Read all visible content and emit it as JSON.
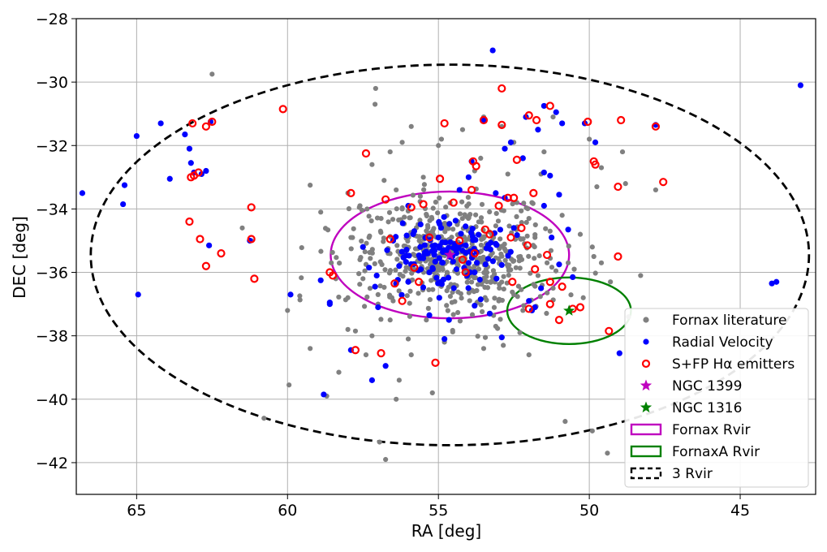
{
  "chart_data": {
    "type": "scatter",
    "xlabel": "RA [deg]",
    "ylabel": "DEC [deg]",
    "xlim": [
      67,
      42.5
    ],
    "ylim": [
      -43,
      -28
    ],
    "x_ticks": [
      65,
      60,
      55,
      50,
      45
    ],
    "y_ticks": [
      -28,
      -30,
      -32,
      -34,
      -36,
      -38,
      -40,
      -42
    ],
    "x_tick_labels": [
      "65",
      "60",
      "55",
      "50",
      "45"
    ],
    "y_tick_labels": [
      "−28",
      "−30",
      "−32",
      "−34",
      "−36",
      "−38",
      "−40",
      "−42"
    ],
    "grid": true,
    "legend_position": "lower-right",
    "colors": {
      "literature": "#808080",
      "velocity": "#0000ff",
      "halpha": "#ff0000",
      "ngc1399": "#bf00bf",
      "ngc1316": "#008000",
      "circle_3rvir": "#000000"
    },
    "legend": [
      {
        "label": "Fornax literature",
        "kind": "dot",
        "color": "#808080"
      },
      {
        "label": "Radial Velocity",
        "kind": "dot",
        "color": "#0000ff"
      },
      {
        "label": "S+FP Hα emitters",
        "kind": "ring",
        "color": "#ff0000"
      },
      {
        "label": "NGC 1399",
        "kind": "star",
        "color": "#bf00bf"
      },
      {
        "label": "NGC 1316",
        "kind": "star",
        "color": "#008000"
      },
      {
        "label": "Fornax Rvir",
        "kind": "rect",
        "color": "#bf00bf",
        "dashed": false
      },
      {
        "label": "FornaxA Rvir",
        "kind": "rect",
        "color": "#008000",
        "dashed": false
      },
      {
        "label": "3 Rvir",
        "kind": "rect",
        "color": "#000000",
        "dashed": true
      }
    ],
    "circles": [
      {
        "name": "Fornax Rvir",
        "center": [
          54.62,
          -35.45
        ],
        "radius_ra": 3.95,
        "radius_dec": 2.0,
        "color": "#bf00bf",
        "dashed": false
      },
      {
        "name": "FornaxA Rvir",
        "center": [
          50.67,
          -37.21
        ],
        "radius_ra": 2.05,
        "radius_dec": 1.05,
        "color": "#008000",
        "dashed": false
      },
      {
        "name": "3 Rvir",
        "center": [
          54.62,
          -35.45
        ],
        "radius_ra": 11.9,
        "radius_dec": 6.0,
        "color": "#000000",
        "dashed": true
      }
    ],
    "stars": [
      {
        "name": "NGC 1399",
        "ra": 54.62,
        "dec": -35.45,
        "color": "#bf00bf"
      },
      {
        "name": "NGC 1316",
        "ra": 50.67,
        "dec": -37.21,
        "color": "#008000"
      }
    ],
    "series": [
      {
        "name": "Fornax literature",
        "color": "#808080",
        "cluster": {
          "center": [
            54.6,
            -35.5
          ],
          "spread_ra": 1.6,
          "spread_dec": 0.9,
          "count": 520,
          "seed": 7
        },
        "points": [
          [
            62.5,
            -29.75
          ],
          [
            60.78,
            -40.6
          ],
          [
            57.08,
            -30.2
          ],
          [
            56.95,
            -41.35
          ],
          [
            56.75,
            -41.9
          ],
          [
            56.4,
            -40.0
          ],
          [
            59.95,
            -39.55
          ],
          [
            59.25,
            -38.4
          ],
          [
            58.7,
            -39.9
          ],
          [
            58.3,
            -39.15
          ],
          [
            58.0,
            -37.8
          ],
          [
            57.75,
            -37.85
          ],
          [
            57.4,
            -38.6
          ],
          [
            59.25,
            -33.25
          ],
          [
            58.9,
            -34.1
          ],
          [
            60.0,
            -37.2
          ],
          [
            61.5,
            -34.6
          ],
          [
            61.2,
            -35.0
          ],
          [
            58.55,
            -35.7
          ],
          [
            57.0,
            -36.7
          ],
          [
            57.2,
            -38.0
          ],
          [
            56.3,
            -39.4
          ],
          [
            55.2,
            -39.8
          ],
          [
            54.8,
            -38.2
          ],
          [
            53.5,
            -38.4
          ],
          [
            52.85,
            -38.3
          ],
          [
            52.0,
            -38.6
          ],
          [
            50.8,
            -40.7
          ],
          [
            49.9,
            -41.0
          ],
          [
            49.4,
            -41.7
          ],
          [
            49.6,
            -35.7
          ],
          [
            48.9,
            -32.2
          ],
          [
            48.8,
            -33.2
          ],
          [
            49.75,
            -33.3
          ],
          [
            50.7,
            -35.7
          ],
          [
            51.3,
            -34.7
          ],
          [
            50.5,
            -35.9
          ],
          [
            49.85,
            -35.5
          ],
          [
            51.9,
            -33.8
          ],
          [
            52.7,
            -32.9
          ],
          [
            53.5,
            -31.1
          ],
          [
            52.5,
            -31.9
          ],
          [
            51.6,
            -32.9
          ],
          [
            50.9,
            -34.2
          ],
          [
            50.3,
            -34.8
          ],
          [
            49.9,
            -35.2
          ],
          [
            53.8,
            -32.8
          ],
          [
            55.0,
            -32.0
          ],
          [
            55.5,
            -33.0
          ],
          [
            56.6,
            -32.2
          ],
          [
            56.8,
            -33.1
          ],
          [
            57.2,
            -32.6
          ],
          [
            58.0,
            -33.5
          ],
          [
            57.6,
            -33.9
          ],
          [
            56.2,
            -31.9
          ],
          [
            54.2,
            -31.5
          ],
          [
            52.9,
            -31.4
          ],
          [
            51.5,
            -32.2
          ],
          [
            50.0,
            -31.8
          ],
          [
            51.2,
            -31.1
          ],
          [
            49.6,
            -32.7
          ],
          [
            47.8,
            -33.4
          ],
          [
            48.3,
            -36.1
          ],
          [
            48.7,
            -37.4
          ],
          [
            49.3,
            -36.3
          ],
          [
            58.0,
            -36.8
          ],
          [
            57.6,
            -35.6
          ],
          [
            57.9,
            -34.9
          ],
          [
            56.9,
            -34.3
          ],
          [
            55.9,
            -31.4
          ],
          [
            54.9,
            -31.8
          ],
          [
            53.6,
            -32.4
          ],
          [
            57.1,
            -30.7
          ],
          [
            52.3,
            -37.9
          ],
          [
            53.1,
            -37.7
          ],
          [
            51.7,
            -36.1
          ],
          [
            51.2,
            -36.5
          ],
          [
            50.2,
            -36.8
          ],
          [
            55.4,
            -37.5
          ],
          [
            56.0,
            -38.1
          ],
          [
            56.6,
            -37.5
          ],
          [
            57.5,
            -36.2
          ],
          [
            57.3,
            -34.9
          ],
          [
            56.2,
            -34.0
          ],
          [
            52.4,
            -33.8
          ],
          [
            52.0,
            -34.3
          ],
          [
            51.8,
            -34.9
          ],
          [
            51.4,
            -35.7
          ],
          [
            53.0,
            -36.9
          ],
          [
            52.2,
            -37.2
          ],
          [
            55.6,
            -33.6
          ],
          [
            56.4,
            -33.4
          ],
          [
            57.0,
            -37.0
          ],
          [
            58.4,
            -36.2
          ],
          [
            55.9,
            -38.6
          ],
          [
            56.5,
            -36.9
          ]
        ]
      },
      {
        "name": "Radial Velocity",
        "color": "#0000ff",
        "cluster": {
          "center": [
            54.7,
            -35.4
          ],
          "spread_ra": 1.0,
          "spread_dec": 0.55,
          "count": 110,
          "seed": 13
        },
        "points": [
          [
            66.8,
            -33.5
          ],
          [
            65.0,
            -31.7
          ],
          [
            64.2,
            -31.3
          ],
          [
            63.4,
            -31.65
          ],
          [
            63.25,
            -32.1
          ],
          [
            63.2,
            -32.55
          ],
          [
            63.1,
            -32.85
          ],
          [
            62.85,
            -32.9
          ],
          [
            62.7,
            -32.8
          ],
          [
            62.55,
            -31.25
          ],
          [
            62.6,
            -35.15
          ],
          [
            64.95,
            -36.7
          ],
          [
            65.4,
            -33.25
          ],
          [
            65.45,
            -33.85
          ],
          [
            63.9,
            -33.05
          ],
          [
            61.25,
            -35.0
          ],
          [
            59.9,
            -36.7
          ],
          [
            58.9,
            -36.25
          ],
          [
            58.6,
            -36.95
          ],
          [
            58.6,
            -37.0
          ],
          [
            58.8,
            -39.85
          ],
          [
            57.9,
            -38.45
          ],
          [
            57.2,
            -39.4
          ],
          [
            56.75,
            -38.95
          ],
          [
            57.1,
            -36.45
          ],
          [
            57.5,
            -35.2
          ],
          [
            57.3,
            -35.85
          ],
          [
            56.5,
            -35.0
          ],
          [
            53.2,
            -29.0
          ],
          [
            53.5,
            -31.2
          ],
          [
            52.8,
            -32.1
          ],
          [
            52.6,
            -31.9
          ],
          [
            52.2,
            -32.4
          ],
          [
            52.1,
            -31.1
          ],
          [
            51.7,
            -31.5
          ],
          [
            51.5,
            -30.75
          ],
          [
            51.1,
            -30.95
          ],
          [
            50.9,
            -31.3
          ],
          [
            50.15,
            -31.3
          ],
          [
            49.8,
            -31.9
          ],
          [
            51.3,
            -32.95
          ],
          [
            51.5,
            -32.85
          ],
          [
            51.0,
            -33.55
          ],
          [
            51.5,
            -33.9
          ],
          [
            50.7,
            -34.65
          ],
          [
            51.25,
            -34.9
          ],
          [
            51.0,
            -35.75
          ],
          [
            50.55,
            -36.15
          ],
          [
            51.6,
            -36.5
          ],
          [
            51.8,
            -37.1
          ],
          [
            52.0,
            -36.9
          ],
          [
            51.9,
            -37.2
          ],
          [
            52.9,
            -38.05
          ],
          [
            53.3,
            -37.3
          ],
          [
            54.8,
            -38.1
          ],
          [
            54.65,
            -37.5
          ],
          [
            55.3,
            -37.35
          ],
          [
            56.4,
            -36.35
          ],
          [
            56.0,
            -36.3
          ],
          [
            57.0,
            -37.1
          ],
          [
            53.8,
            -37.05
          ],
          [
            53.6,
            -36.85
          ],
          [
            49.0,
            -38.55
          ],
          [
            43.95,
            -36.35
          ],
          [
            43.8,
            -36.3
          ],
          [
            43.0,
            -30.1
          ],
          [
            47.8,
            -31.35
          ],
          [
            53.9,
            -32.5
          ],
          [
            54.0,
            -33.0
          ],
          [
            54.3,
            -33.4
          ],
          [
            53.1,
            -33.5
          ],
          [
            52.8,
            -33.65
          ],
          [
            52.5,
            -34.6
          ],
          [
            53.1,
            -35.1
          ],
          [
            55.0,
            -34.9
          ],
          [
            55.6,
            -35.2
          ],
          [
            55.8,
            -34.7
          ],
          [
            56.0,
            -33.9
          ],
          [
            54.1,
            -34.55
          ],
          [
            53.8,
            -36.0
          ],
          [
            54.0,
            -35.7
          ],
          [
            54.4,
            -35.9
          ],
          [
            55.3,
            -36.0
          ],
          [
            56.3,
            -35.8
          ],
          [
            56.7,
            -35.3
          ]
        ]
      },
      {
        "name": "S+FP Hα emitters",
        "color": "#ff0000",
        "points": [
          [
            63.15,
            -31.3
          ],
          [
            62.7,
            -31.4
          ],
          [
            62.5,
            -31.25
          ],
          [
            60.15,
            -30.85
          ],
          [
            63.1,
            -32.95
          ],
          [
            62.95,
            -32.85
          ],
          [
            63.2,
            -33.0
          ],
          [
            63.25,
            -34.4
          ],
          [
            62.9,
            -34.95
          ],
          [
            62.7,
            -35.8
          ],
          [
            62.2,
            -35.4
          ],
          [
            61.2,
            -33.95
          ],
          [
            61.2,
            -34.95
          ],
          [
            61.1,
            -36.2
          ],
          [
            58.6,
            -36.0
          ],
          [
            58.5,
            -36.1
          ],
          [
            57.9,
            -33.5
          ],
          [
            57.4,
            -32.25
          ],
          [
            56.75,
            -33.7
          ],
          [
            56.6,
            -34.95
          ],
          [
            56.45,
            -36.35
          ],
          [
            56.2,
            -36.9
          ],
          [
            55.8,
            -35.85
          ],
          [
            55.65,
            -36.3
          ],
          [
            55.9,
            -33.95
          ],
          [
            55.5,
            -33.85
          ],
          [
            55.3,
            -34.9
          ],
          [
            55.1,
            -38.85
          ],
          [
            54.95,
            -33.05
          ],
          [
            54.8,
            -31.3
          ],
          [
            54.5,
            -33.8
          ],
          [
            54.3,
            -35.0
          ],
          [
            54.2,
            -35.6
          ],
          [
            54.1,
            -36.0
          ],
          [
            53.85,
            -32.5
          ],
          [
            53.75,
            -32.65
          ],
          [
            53.9,
            -33.4
          ],
          [
            53.5,
            -31.2
          ],
          [
            53.45,
            -34.65
          ],
          [
            53.3,
            -34.8
          ],
          [
            53.0,
            -33.9
          ],
          [
            52.9,
            -31.35
          ],
          [
            52.9,
            -30.2
          ],
          [
            52.7,
            -33.65
          ],
          [
            52.5,
            -33.65
          ],
          [
            52.4,
            -32.45
          ],
          [
            52.0,
            -31.05
          ],
          [
            51.75,
            -31.2
          ],
          [
            51.3,
            -30.75
          ],
          [
            51.85,
            -33.5
          ],
          [
            51.8,
            -35.9
          ],
          [
            52.05,
            -35.15
          ],
          [
            52.25,
            -34.6
          ],
          [
            52.6,
            -34.9
          ],
          [
            52.55,
            -36.3
          ],
          [
            53.8,
            -35.4
          ],
          [
            52.0,
            -37.15
          ],
          [
            51.3,
            -37.0
          ],
          [
            51.0,
            -37.5
          ],
          [
            51.3,
            -36.3
          ],
          [
            51.4,
            -35.45
          ],
          [
            50.9,
            -36.45
          ],
          [
            50.55,
            -37.15
          ],
          [
            50.3,
            -37.1
          ],
          [
            49.85,
            -32.5
          ],
          [
            49.8,
            -32.6
          ],
          [
            49.35,
            -37.85
          ],
          [
            49.05,
            -33.3
          ],
          [
            49.05,
            -35.5
          ],
          [
            48.95,
            -31.2
          ],
          [
            47.8,
            -31.4
          ],
          [
            47.55,
            -33.15
          ],
          [
            50.05,
            -31.25
          ],
          [
            57.75,
            -38.45
          ],
          [
            56.9,
            -38.55
          ]
        ]
      }
    ]
  }
}
